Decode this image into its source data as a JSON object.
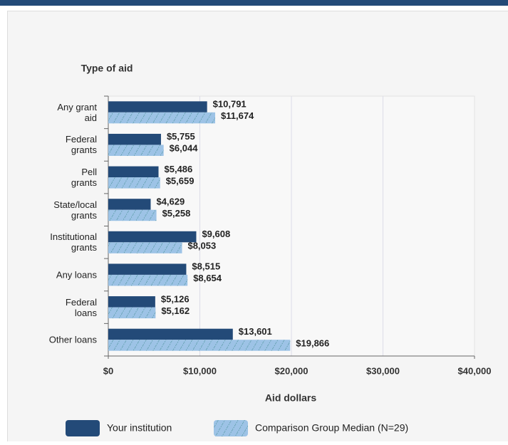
{
  "chart_data": {
    "type": "bar",
    "orientation": "horizontal",
    "y_axis_title": "Type of aid",
    "x_axis_title": "Aid dollars",
    "categories": [
      "Any grant\naid",
      "Federal\ngrants",
      "Pell\ngrants",
      "State/local\ngrants",
      "Institutional\ngrants",
      "Any loans",
      "Federal\nloans",
      "Other loans"
    ],
    "series": [
      {
        "name": "Your institution",
        "color": "#234a78",
        "values": [
          10791,
          5755,
          5486,
          4629,
          9608,
          8515,
          5126,
          13601
        ],
        "value_labels": [
          "$10,791",
          "$5,755",
          "$5,486",
          "$4,629",
          "$9,608",
          "$8,515",
          "$5,126",
          "$13,601"
        ]
      },
      {
        "name": "Comparison Group Median (N=29)",
        "color": "#9dc3e6",
        "values": [
          11674,
          6044,
          5659,
          5258,
          8053,
          8654,
          5162,
          19866
        ],
        "value_labels": [
          "$11,674",
          "$6,044",
          "$5,659",
          "$5,258",
          "$8,053",
          "$8,654",
          "$5,162",
          "$19,866"
        ]
      }
    ],
    "xlim": [
      0,
      40000
    ],
    "xticks": [
      {
        "value": 0,
        "label": "$0"
      },
      {
        "value": 10000,
        "label": "$10,000"
      },
      {
        "value": 20000,
        "label": "$20,000"
      },
      {
        "value": 30000,
        "label": "$30,000"
      },
      {
        "value": 40000,
        "label": "$40,000"
      }
    ],
    "grid": true
  }
}
